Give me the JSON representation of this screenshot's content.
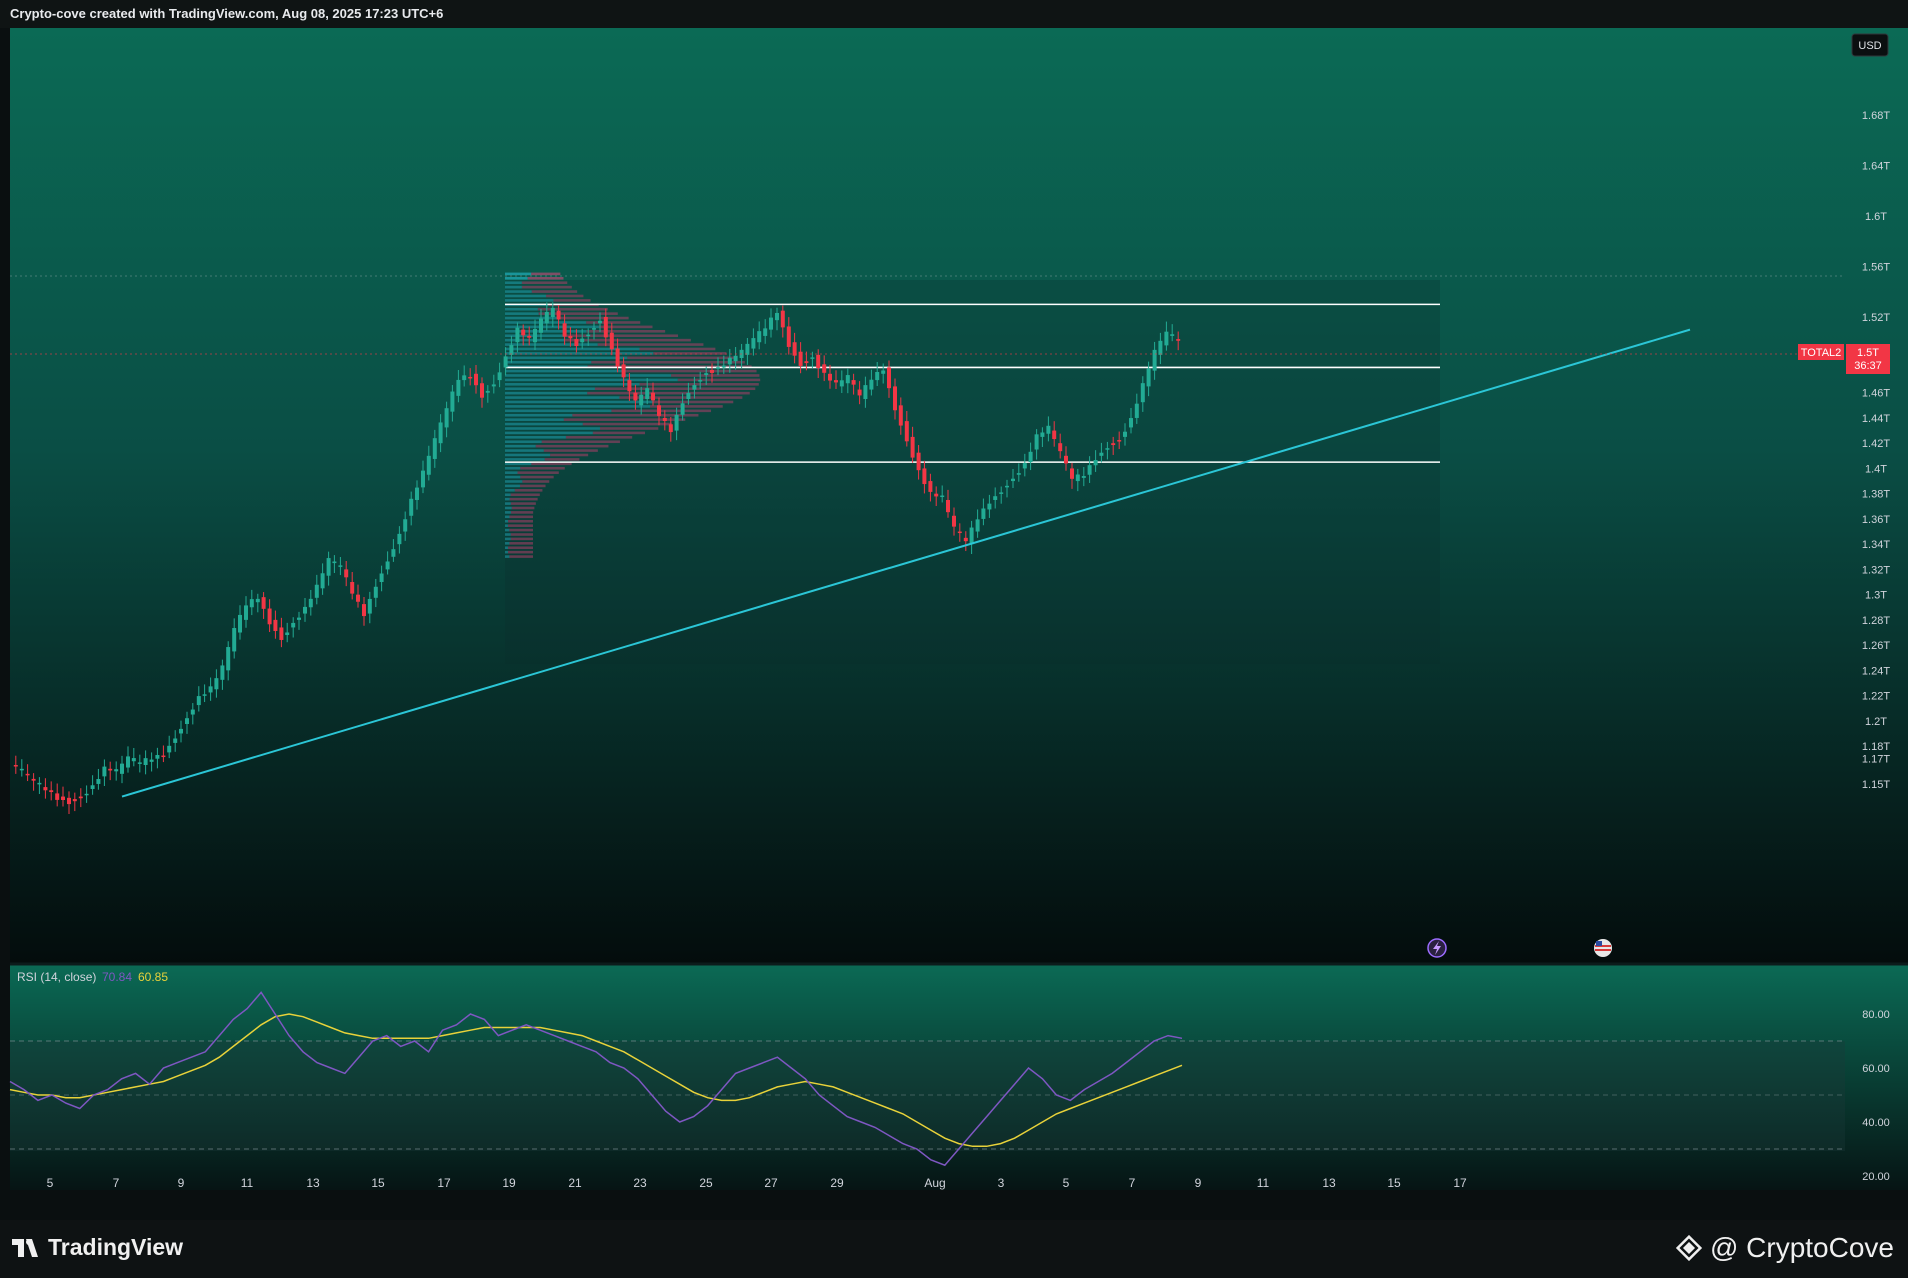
{
  "header": {
    "title": "Crypto-cove created with TradingView.com, Aug 08, 2025 17:23 UTC+6"
  },
  "currency_button": {
    "label": "USD"
  },
  "symbol_tag": {
    "label": "TOTAL2",
    "price": "1.5T",
    "countdown": "36:37"
  },
  "colors": {
    "up": "#22ab94",
    "down": "#f23645",
    "trendline": "#2bc6d6",
    "rsi_line": "#7e57c2",
    "rsi_ma": "#e8d23a",
    "profile_up": "#26c6da",
    "profile_down": "#e0457b"
  },
  "icons": [
    "lightning-icon",
    "us-flag-icon",
    "tradingview-logo-icon",
    "binance-diamond-icon"
  ],
  "rsi": {
    "title": "RSI (14, close)",
    "value": "70.84",
    "ma_value": "60.85"
  },
  "footer": {
    "brand": "TradingView",
    "handle": "@ CryptoCove"
  },
  "chart_data": [
    {
      "type": "candlestick",
      "symbol": "TOTAL2",
      "currency": "USD",
      "interval_note": "4H candles, Aug 2025 crypto market cap excluding BTC",
      "y_axis_ticks": [
        "1.68T",
        "1.64T",
        "1.6T",
        "1.56T",
        "1.52T",
        "1.48T",
        "1.46T",
        "1.44T",
        "1.42T",
        "1.4T",
        "1.38T",
        "1.36T",
        "1.34T",
        "1.32T",
        "1.3T",
        "1.28T",
        "1.26T",
        "1.24T",
        "1.22T",
        "1.2T",
        "1.18T",
        "1.17T",
        "1.15T"
      ],
      "x_axis_ticks": [
        "5",
        "7",
        "9",
        "11",
        "13",
        "15",
        "17",
        "19",
        "21",
        "23",
        "25",
        "27",
        "29",
        "Aug",
        "3",
        "5",
        "7",
        "9",
        "11",
        "13",
        "15",
        "17"
      ],
      "last_price": 1.5,
      "horizontal_levels": [
        1.53,
        1.48,
        1.405
      ],
      "trendline": {
        "from": [
          "Jul 8",
          1.14
        ],
        "to": [
          "Aug 15",
          1.51
        ]
      },
      "close_path": [
        [
          0,
          1.165
        ],
        [
          1,
          1.158
        ],
        [
          2,
          1.15
        ],
        [
          3,
          1.145
        ],
        [
          4,
          1.14
        ],
        [
          5,
          1.138
        ],
        [
          6,
          1.142
        ],
        [
          7,
          1.15
        ],
        [
          8,
          1.162
        ],
        [
          9,
          1.158
        ],
        [
          10,
          1.168
        ],
        [
          11,
          1.165
        ],
        [
          12,
          1.17
        ],
        [
          13,
          1.175
        ],
        [
          14,
          1.19
        ],
        [
          15,
          1.205
        ],
        [
          16,
          1.22
        ],
        [
          17,
          1.225
        ],
        [
          18,
          1.24
        ],
        [
          19,
          1.27
        ],
        [
          20,
          1.29
        ],
        [
          21,
          1.298
        ],
        [
          22,
          1.28
        ],
        [
          23,
          1.268
        ],
        [
          24,
          1.28
        ],
        [
          25,
          1.29
        ],
        [
          26,
          1.305
        ],
        [
          27,
          1.325
        ],
        [
          28,
          1.32
        ],
        [
          29,
          1.3
        ],
        [
          30,
          1.285
        ],
        [
          31,
          1.31
        ],
        [
          32,
          1.33
        ],
        [
          33,
          1.35
        ],
        [
          34,
          1.375
        ],
        [
          35,
          1.395
        ],
        [
          36,
          1.42
        ],
        [
          37,
          1.445
        ],
        [
          38,
          1.47
        ],
        [
          39,
          1.475
        ],
        [
          40,
          1.46
        ],
        [
          41,
          1.47
        ],
        [
          42,
          1.49
        ],
        [
          43,
          1.51
        ],
        [
          44,
          1.5
        ],
        [
          45,
          1.515
        ],
        [
          46,
          1.525
        ],
        [
          47,
          1.505
        ],
        [
          48,
          1.5
        ],
        [
          49,
          1.51
        ],
        [
          50,
          1.52
        ],
        [
          51,
          1.495
        ],
        [
          52,
          1.47
        ],
        [
          53,
          1.45
        ],
        [
          54,
          1.46
        ],
        [
          55,
          1.44
        ],
        [
          56,
          1.43
        ],
        [
          57,
          1.455
        ],
        [
          58,
          1.47
        ],
        [
          59,
          1.478
        ],
        [
          60,
          1.48
        ],
        [
          61,
          1.485
        ],
        [
          62,
          1.49
        ],
        [
          63,
          1.5
        ],
        [
          64,
          1.51
        ],
        [
          65,
          1.525
        ],
        [
          66,
          1.5
        ],
        [
          67,
          1.485
        ],
        [
          68,
          1.49
        ],
        [
          69,
          1.475
        ],
        [
          70,
          1.465
        ],
        [
          71,
          1.47
        ],
        [
          72,
          1.455
        ],
        [
          73,
          1.47
        ],
        [
          74,
          1.48
        ],
        [
          75,
          1.45
        ],
        [
          76,
          1.425
        ],
        [
          77,
          1.4
        ],
        [
          78,
          1.38
        ],
        [
          79,
          1.375
        ],
        [
          80,
          1.35
        ],
        [
          81,
          1.34
        ],
        [
          82,
          1.36
        ],
        [
          83,
          1.375
        ],
        [
          84,
          1.385
        ],
        [
          85,
          1.395
        ],
        [
          86,
          1.405
        ],
        [
          87,
          1.425
        ],
        [
          88,
          1.43
        ],
        [
          89,
          1.41
        ],
        [
          90,
          1.39
        ],
        [
          91,
          1.395
        ],
        [
          92,
          1.41
        ],
        [
          93,
          1.42
        ],
        [
          94,
          1.425
        ],
        [
          95,
          1.44
        ],
        [
          96,
          1.465
        ],
        [
          97,
          1.49
        ],
        [
          98,
          1.505
        ],
        [
          99,
          1.5
        ]
      ]
    },
    {
      "type": "line",
      "title": "RSI (14, close)",
      "y_axis_ticks": [
        "80.00",
        "60.00",
        "40.00",
        "20.00"
      ],
      "bands": [
        70,
        50,
        30
      ],
      "series": [
        {
          "name": "RSI",
          "values": [
            55,
            52,
            48,
            50,
            47,
            45,
            50,
            52,
            56,
            58,
            54,
            60,
            62,
            64,
            66,
            72,
            78,
            82,
            88,
            80,
            72,
            66,
            62,
            60,
            58,
            64,
            70,
            72,
            68,
            70,
            66,
            74,
            76,
            80,
            78,
            72,
            74,
            76,
            74,
            72,
            70,
            68,
            66,
            62,
            60,
            56,
            50,
            44,
            40,
            42,
            46,
            52,
            58,
            60,
            62,
            64,
            60,
            56,
            50,
            46,
            42,
            40,
            38,
            35,
            32,
            30,
            26,
            24,
            30,
            36,
            42,
            48,
            54,
            60,
            56,
            50,
            48,
            52,
            55,
            58,
            62,
            66,
            70,
            72,
            71
          ]
        },
        {
          "name": "RSI MA",
          "values": [
            52,
            51,
            50,
            50,
            49,
            49,
            50,
            51,
            52,
            53,
            54,
            55,
            57,
            59,
            61,
            64,
            68,
            72,
            76,
            79,
            80,
            79,
            77,
            75,
            73,
            72,
            71,
            71,
            71,
            71,
            71,
            72,
            73,
            74,
            75,
            75,
            75,
            75,
            75,
            74,
            73,
            72,
            70,
            68,
            66,
            63,
            60,
            57,
            54,
            51,
            49,
            48,
            48,
            49,
            51,
            53,
            54,
            55,
            54,
            53,
            51,
            49,
            47,
            45,
            43,
            40,
            37,
            34,
            32,
            31,
            31,
            32,
            34,
            37,
            40,
            43,
            45,
            47,
            49,
            51,
            53,
            55,
            57,
            59,
            61
          ]
        }
      ]
    }
  ]
}
